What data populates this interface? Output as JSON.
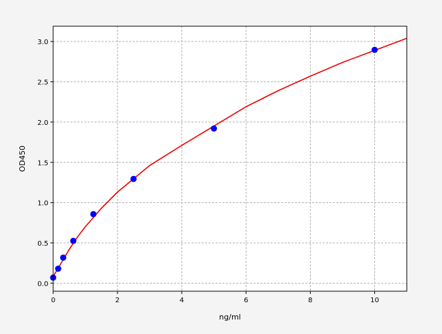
{
  "chart_data": {
    "type": "scatter",
    "title": "",
    "xlabel": "ng/ml",
    "ylabel": "OD450",
    "xlim": [
      0,
      11
    ],
    "ylim": [
      -0.1,
      3.19
    ],
    "xticks": [
      0,
      2,
      4,
      6,
      8,
      10
    ],
    "xtick_labels": [
      "0",
      "2",
      "4",
      "6",
      "8",
      "10"
    ],
    "yticks": [
      0.0,
      0.5,
      1.0,
      1.5,
      2.0,
      2.5,
      3.0
    ],
    "ytick_labels": [
      "0.0",
      "0.5",
      "1.0",
      "1.5",
      "2.0",
      "2.5",
      "3.0"
    ],
    "grid": true,
    "series": [
      {
        "kind": "points",
        "color": "#0000ff",
        "x": [
          0,
          0.156,
          0.312,
          0.625,
          1.25,
          2.5,
          5,
          10
        ],
        "y": [
          0.069,
          0.18,
          0.317,
          0.525,
          0.857,
          1.294,
          1.92,
          2.897
        ]
      },
      {
        "kind": "fit-curve",
        "color": "#ee0000",
        "x": [
          0,
          0.1,
          0.25,
          0.5,
          0.75,
          1,
          1.5,
          2,
          3,
          4,
          5,
          6,
          7,
          8,
          9,
          10,
          11
        ],
        "y": [
          0.085,
          0.15,
          0.25,
          0.42,
          0.57,
          0.7,
          0.93,
          1.13,
          1.46,
          1.71,
          1.95,
          2.19,
          2.39,
          2.57,
          2.74,
          2.89,
          3.04
        ]
      }
    ]
  }
}
